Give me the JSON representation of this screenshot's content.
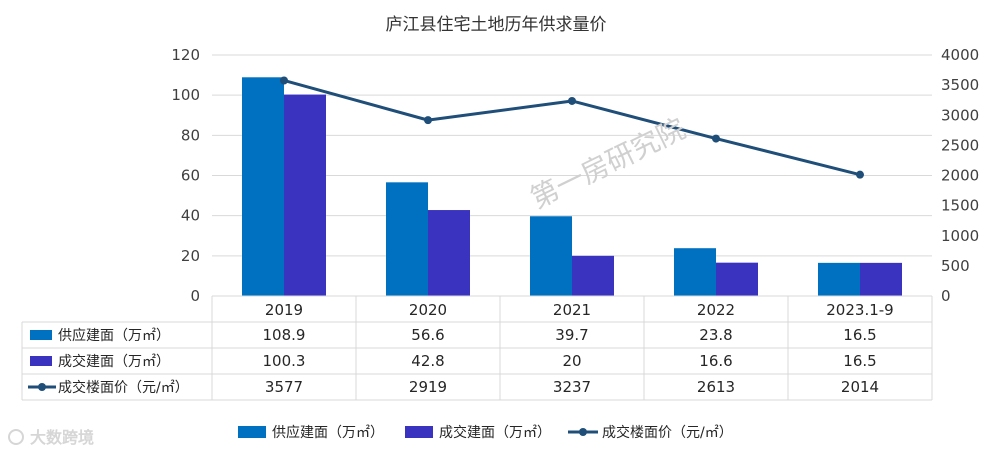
{
  "colors": {
    "supply": "#0070c0",
    "deal": "#3a33bf",
    "price": "#1f4e79",
    "grid": "#d9d9d9",
    "watermark": "#d0d0d0"
  },
  "chart_data": {
    "type": "bar",
    "title": "庐江县住宅土地历年供求量价",
    "categories": [
      "2019",
      "2020",
      "2021",
      "2022",
      "2023.1-9"
    ],
    "series": [
      {
        "name": "供应建面（万㎡）",
        "kind": "bar",
        "axis": "left",
        "values": [
          108.9,
          56.6,
          39.7,
          23.8,
          16.5
        ]
      },
      {
        "name": "成交建面（万㎡）",
        "kind": "bar",
        "axis": "left",
        "values": [
          100.3,
          42.8,
          20,
          16.6,
          16.5
        ]
      },
      {
        "name": "成交楼面价（元/㎡）",
        "kind": "line",
        "axis": "right",
        "values": [
          3577,
          2919,
          3237,
          2613,
          2014
        ]
      }
    ],
    "y_left": {
      "min": 0,
      "max": 120,
      "ticks": [
        "0",
        "20",
        "40",
        "60",
        "80",
        "100",
        "120"
      ]
    },
    "y_right": {
      "min": 0,
      "max": 4000,
      "ticks": [
        "0",
        "500",
        "1000",
        "1500",
        "2000",
        "2500",
        "3000",
        "3500",
        "4000"
      ]
    },
    "data_table": {
      "rows": [
        {
          "label": "供应建面（万㎡）",
          "cells": [
            "108.9",
            "56.6",
            "39.7",
            "23.8",
            "16.5"
          ]
        },
        {
          "label": "成交建面（万㎡）",
          "cells": [
            "100.3",
            "42.8",
            "20",
            "16.6",
            "16.5"
          ]
        },
        {
          "label": "成交楼面价（元/㎡）",
          "cells": [
            "3577",
            "2919",
            "3237",
            "2613",
            "2014"
          ]
        }
      ]
    },
    "legend": {
      "position": "bottom",
      "items": [
        "供应建面（万㎡）",
        "成交建面（万㎡）",
        "成交楼面价（元/㎡）"
      ]
    },
    "annotations": {
      "watermark": "第一房研究院",
      "brand": "大数跨境"
    }
  }
}
